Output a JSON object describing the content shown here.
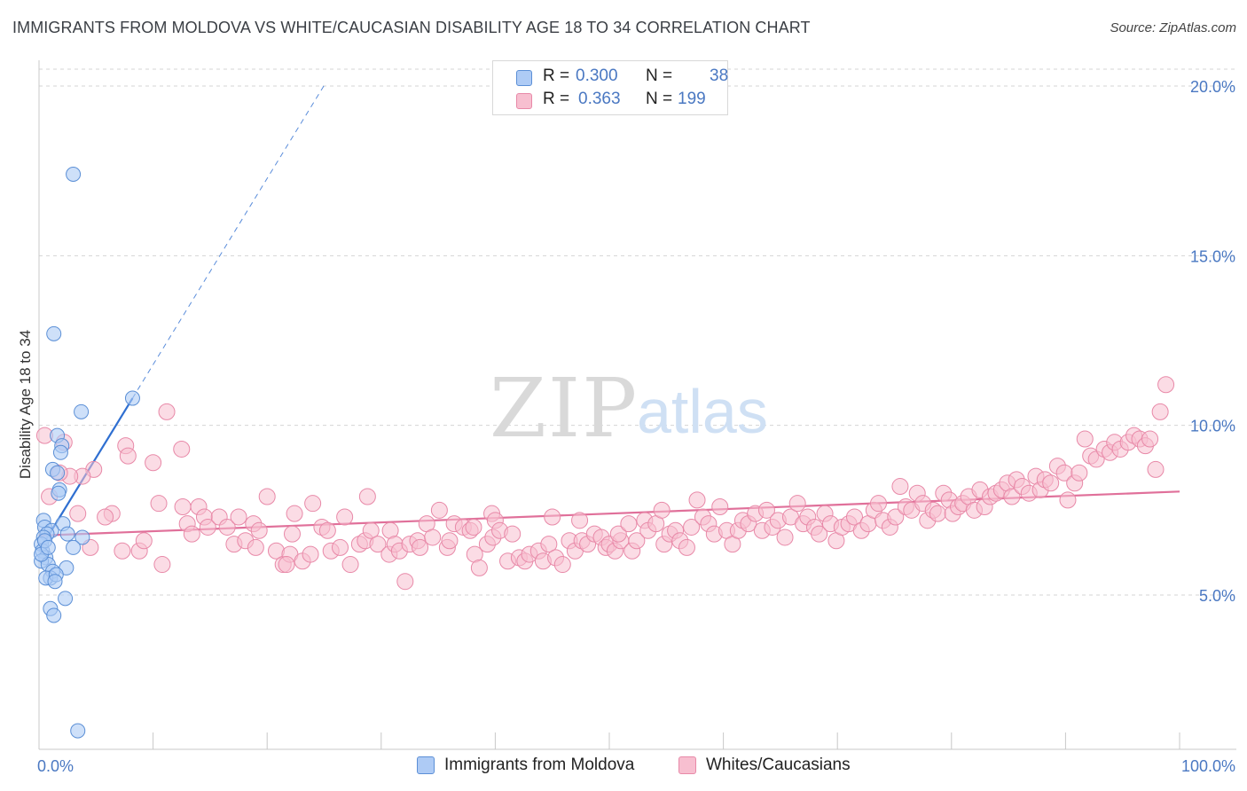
{
  "title": "IMMIGRANTS FROM MOLDOVA VS WHITE/CAUCASIAN DISABILITY AGE 18 TO 34 CORRELATION CHART",
  "source": "Source: ZipAtlas.com",
  "watermark": {
    "zip": "ZIP",
    "atlas": "atlas"
  },
  "legend": {
    "r_label": "R =",
    "n_label": "N =",
    "rows": [
      {
        "r": "0.300",
        "n": "38"
      },
      {
        "r": "0.363",
        "n": "199"
      }
    ]
  },
  "colors": {
    "blue_fill": "#aecbf5",
    "blue_stroke": "#5b8fd6",
    "blue_line": "#2f6fd1",
    "pink_fill": "#f7bfd0",
    "pink_stroke": "#e889a8",
    "pink_line": "#e0709a",
    "tick_color": "#4a78c2"
  },
  "chart_data": {
    "type": "scatter",
    "title": "IMMIGRANTS FROM MOLDOVA VS WHITE/CAUCASIAN DISABILITY AGE 18 TO 34 CORRELATION CHART",
    "xlabel": "",
    "ylabel": "Disability Age 18 to 34",
    "xlim": [
      0,
      100
    ],
    "ylim": [
      0,
      21
    ],
    "x_tick_labels": [
      "0.0%",
      "100.0%"
    ],
    "y_ticks": [
      5,
      10,
      15,
      20
    ],
    "y_tick_labels": [
      "5.0%",
      "10.0%",
      "15.0%",
      "20.0%"
    ],
    "grid": true,
    "series": [
      {
        "name": "Immigrants from Moldova",
        "color": "blue",
        "r": 0.3,
        "n": 38,
        "trend": {
          "x0": 0.0,
          "y0": 6.3,
          "x1": 8.2,
          "y1": 10.8,
          "dash_to_x": 25.0
        },
        "points": [
          [
            3.0,
            17.4
          ],
          [
            1.3,
            12.7
          ],
          [
            8.2,
            10.8
          ],
          [
            3.7,
            10.4
          ],
          [
            1.6,
            9.7
          ],
          [
            2.0,
            9.4
          ],
          [
            1.9,
            9.2
          ],
          [
            1.2,
            8.7
          ],
          [
            1.6,
            8.6
          ],
          [
            1.8,
            8.1
          ],
          [
            1.7,
            8.0
          ],
          [
            0.4,
            7.2
          ],
          [
            0.5,
            7.0
          ],
          [
            2.1,
            7.1
          ],
          [
            2.5,
            6.8
          ],
          [
            1.1,
            6.9
          ],
          [
            0.7,
            6.8
          ],
          [
            0.4,
            6.7
          ],
          [
            3.8,
            6.7
          ],
          [
            0.2,
            6.5
          ],
          [
            0.3,
            6.3
          ],
          [
            3.0,
            6.4
          ],
          [
            0.6,
            6.1
          ],
          [
            0.2,
            6.0
          ],
          [
            0.8,
            5.9
          ],
          [
            1.2,
            5.7
          ],
          [
            2.4,
            5.8
          ],
          [
            1.0,
            5.5
          ],
          [
            0.6,
            5.5
          ],
          [
            1.5,
            5.6
          ],
          [
            1.4,
            5.4
          ],
          [
            2.3,
            4.9
          ],
          [
            1.0,
            4.6
          ],
          [
            1.3,
            4.4
          ],
          [
            0.2,
            6.2
          ],
          [
            0.5,
            6.6
          ],
          [
            0.8,
            6.4
          ],
          [
            3.4,
            1.0
          ]
        ]
      },
      {
        "name": "Whites/Caucasians",
        "color": "pink",
        "r": 0.363,
        "n": 199,
        "trend": {
          "x0": 0.0,
          "y0": 6.75,
          "x1": 100.0,
          "y1": 8.05
        },
        "points": [
          [
            0.5,
            9.7
          ],
          [
            2.2,
            9.5
          ],
          [
            4.8,
            8.7
          ],
          [
            3.8,
            8.5
          ],
          [
            2.7,
            8.5
          ],
          [
            1.8,
            8.6
          ],
          [
            0.9,
            7.9
          ],
          [
            3.4,
            7.4
          ],
          [
            6.4,
            7.4
          ],
          [
            5.8,
            7.3
          ],
          [
            7.3,
            6.3
          ],
          [
            8.8,
            6.3
          ],
          [
            9.2,
            6.6
          ],
          [
            4.5,
            6.4
          ],
          [
            10.8,
            5.9
          ],
          [
            7.6,
            9.4
          ],
          [
            7.8,
            9.1
          ],
          [
            10.0,
            8.9
          ],
          [
            10.5,
            7.7
          ],
          [
            12.6,
            7.6
          ],
          [
            11.2,
            10.4
          ],
          [
            12.5,
            9.3
          ],
          [
            13.0,
            7.1
          ],
          [
            14.0,
            7.6
          ],
          [
            14.5,
            7.3
          ],
          [
            13.4,
            6.8
          ],
          [
            14.8,
            7.0
          ],
          [
            15.8,
            7.3
          ],
          [
            16.5,
            7.0
          ],
          [
            17.1,
            6.5
          ],
          [
            17.5,
            7.3
          ],
          [
            18.1,
            6.6
          ],
          [
            19.0,
            6.4
          ],
          [
            18.8,
            7.1
          ],
          [
            19.3,
            6.9
          ],
          [
            20.0,
            7.9
          ],
          [
            20.8,
            6.3
          ],
          [
            21.4,
            5.9
          ],
          [
            22.0,
            6.2
          ],
          [
            21.7,
            5.9
          ],
          [
            22.2,
            6.8
          ],
          [
            23.1,
            6.0
          ],
          [
            22.4,
            7.4
          ],
          [
            23.8,
            6.2
          ],
          [
            24.8,
            7.0
          ],
          [
            25.3,
            6.9
          ],
          [
            24.0,
            7.7
          ],
          [
            25.6,
            6.3
          ],
          [
            26.4,
            6.4
          ],
          [
            26.8,
            7.3
          ],
          [
            27.3,
            5.9
          ],
          [
            28.1,
            6.5
          ],
          [
            28.6,
            6.6
          ],
          [
            28.8,
            7.9
          ],
          [
            29.1,
            6.9
          ],
          [
            29.7,
            6.5
          ],
          [
            30.7,
            6.2
          ],
          [
            30.8,
            6.9
          ],
          [
            31.2,
            6.5
          ],
          [
            31.6,
            6.3
          ],
          [
            32.1,
            5.4
          ],
          [
            32.5,
            6.5
          ],
          [
            33.2,
            6.6
          ],
          [
            33.4,
            6.4
          ],
          [
            34.0,
            7.1
          ],
          [
            34.5,
            6.7
          ],
          [
            35.1,
            7.5
          ],
          [
            35.8,
            6.4
          ],
          [
            36.0,
            6.6
          ],
          [
            36.4,
            7.1
          ],
          [
            37.2,
            7.0
          ],
          [
            37.8,
            6.9
          ],
          [
            38.2,
            6.2
          ],
          [
            38.6,
            5.8
          ],
          [
            38.1,
            7.0
          ],
          [
            39.3,
            6.5
          ],
          [
            39.7,
            7.4
          ],
          [
            40.0,
            7.2
          ],
          [
            39.8,
            6.7
          ],
          [
            40.4,
            6.9
          ],
          [
            41.1,
            6.0
          ],
          [
            41.5,
            6.8
          ],
          [
            42.1,
            6.1
          ],
          [
            42.6,
            6.0
          ],
          [
            43.0,
            6.2
          ],
          [
            43.8,
            6.3
          ],
          [
            44.2,
            6.0
          ],
          [
            44.7,
            6.5
          ],
          [
            45.0,
            7.3
          ],
          [
            45.3,
            6.1
          ],
          [
            45.9,
            5.9
          ],
          [
            46.5,
            6.6
          ],
          [
            47.0,
            6.3
          ],
          [
            47.6,
            6.6
          ],
          [
            47.4,
            7.2
          ],
          [
            48.1,
            6.5
          ],
          [
            48.7,
            6.8
          ],
          [
            49.3,
            6.7
          ],
          [
            49.7,
            6.4
          ],
          [
            50.0,
            6.5
          ],
          [
            50.5,
            6.3
          ],
          [
            51.0,
            6.6
          ],
          [
            50.8,
            6.8
          ],
          [
            51.7,
            7.1
          ],
          [
            52.0,
            6.3
          ],
          [
            52.4,
            6.6
          ],
          [
            53.1,
            7.2
          ],
          [
            53.4,
            6.9
          ],
          [
            54.1,
            7.1
          ],
          [
            54.6,
            7.5
          ],
          [
            54.8,
            6.5
          ],
          [
            55.3,
            6.8
          ],
          [
            55.8,
            6.9
          ],
          [
            56.2,
            6.6
          ],
          [
            56.8,
            6.4
          ],
          [
            57.2,
            7.0
          ],
          [
            57.7,
            7.8
          ],
          [
            58.2,
            7.3
          ],
          [
            58.7,
            7.1
          ],
          [
            59.2,
            6.8
          ],
          [
            59.7,
            7.6
          ],
          [
            60.3,
            6.9
          ],
          [
            60.8,
            6.5
          ],
          [
            61.3,
            6.9
          ],
          [
            61.7,
            7.2
          ],
          [
            62.2,
            7.1
          ],
          [
            62.8,
            7.4
          ],
          [
            63.4,
            6.9
          ],
          [
            63.8,
            7.5
          ],
          [
            64.3,
            7.0
          ],
          [
            64.8,
            7.2
          ],
          [
            65.4,
            6.7
          ],
          [
            65.9,
            7.3
          ],
          [
            66.5,
            7.7
          ],
          [
            67.0,
            7.1
          ],
          [
            67.4,
            7.3
          ],
          [
            68.0,
            7.0
          ],
          [
            68.4,
            6.8
          ],
          [
            68.9,
            7.4
          ],
          [
            69.4,
            7.1
          ],
          [
            69.9,
            6.6
          ],
          [
            70.4,
            7.0
          ],
          [
            71.0,
            7.1
          ],
          [
            71.5,
            7.3
          ],
          [
            72.1,
            6.9
          ],
          [
            72.7,
            7.1
          ],
          [
            73.2,
            7.5
          ],
          [
            73.6,
            7.7
          ],
          [
            74.0,
            7.2
          ],
          [
            74.6,
            7.0
          ],
          [
            75.1,
            7.3
          ],
          [
            75.5,
            8.2
          ],
          [
            76.0,
            7.6
          ],
          [
            76.5,
            7.5
          ],
          [
            77.0,
            8.0
          ],
          [
            77.5,
            7.7
          ],
          [
            77.9,
            7.2
          ],
          [
            78.4,
            7.5
          ],
          [
            78.8,
            7.4
          ],
          [
            79.3,
            8.0
          ],
          [
            79.8,
            7.8
          ],
          [
            80.1,
            7.4
          ],
          [
            80.6,
            7.6
          ],
          [
            81.0,
            7.7
          ],
          [
            81.5,
            7.9
          ],
          [
            82.0,
            7.5
          ],
          [
            82.5,
            8.1
          ],
          [
            82.9,
            7.6
          ],
          [
            83.4,
            7.9
          ],
          [
            83.9,
            8.0
          ],
          [
            84.4,
            8.1
          ],
          [
            84.9,
            8.3
          ],
          [
            85.3,
            7.9
          ],
          [
            85.7,
            8.4
          ],
          [
            86.2,
            8.2
          ],
          [
            86.8,
            8.0
          ],
          [
            87.4,
            8.5
          ],
          [
            87.8,
            8.1
          ],
          [
            88.2,
            8.4
          ],
          [
            88.7,
            8.3
          ],
          [
            89.3,
            8.8
          ],
          [
            89.9,
            8.6
          ],
          [
            90.2,
            7.8
          ],
          [
            90.8,
            8.3
          ],
          [
            91.2,
            8.6
          ],
          [
            91.7,
            9.6
          ],
          [
            92.2,
            9.1
          ],
          [
            92.7,
            9.0
          ],
          [
            93.4,
            9.3
          ],
          [
            93.9,
            9.2
          ],
          [
            94.3,
            9.5
          ],
          [
            94.8,
            9.3
          ],
          [
            95.5,
            9.5
          ],
          [
            96.0,
            9.7
          ],
          [
            96.5,
            9.6
          ],
          [
            97.0,
            9.4
          ],
          [
            97.4,
            9.6
          ],
          [
            97.9,
            8.7
          ],
          [
            98.3,
            10.4
          ],
          [
            98.8,
            11.2
          ]
        ]
      }
    ],
    "bottom_legend": [
      "Immigrants from Moldova",
      "Whites/Caucasians"
    ]
  }
}
